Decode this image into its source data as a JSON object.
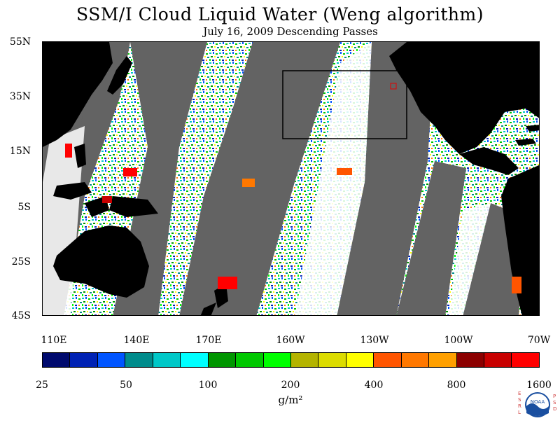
{
  "title": "SSM/I Cloud Liquid Water (Weng algorithm)",
  "subtitle": "July 16, 2009  Descending Passes",
  "colors": {
    "land": "#000000",
    "no_data_gap": "#636363",
    "low_value_background": "#ffffff",
    "annotation_box": "#000000",
    "marker_box": "#e00000"
  },
  "map": {
    "latitude_labels": [
      "55N",
      "35N",
      "15N",
      "5S",
      "25S",
      "45S"
    ],
    "longitude_labels": [
      "110E",
      "140E",
      "170E",
      "160W",
      "130W",
      "100W",
      "70W"
    ]
  },
  "colorbar": {
    "swatches": [
      "#000a6e",
      "#0022b4",
      "#0055ff",
      "#008c8c",
      "#00c8c8",
      "#00ffff",
      "#009600",
      "#00c800",
      "#00ff00",
      "#b4b400",
      "#dcdc00",
      "#ffff00",
      "#ff5500",
      "#ff7800",
      "#ffa000",
      "#8c0000",
      "#c80000",
      "#ff0000"
    ],
    "tick_labels": [
      "25",
      "50",
      "100",
      "200",
      "400",
      "800",
      "1600"
    ],
    "units": "g/m²"
  },
  "logo": {
    "left_text": "ESRL",
    "right_text": "PSD",
    "center_text": "NOAA"
  }
}
